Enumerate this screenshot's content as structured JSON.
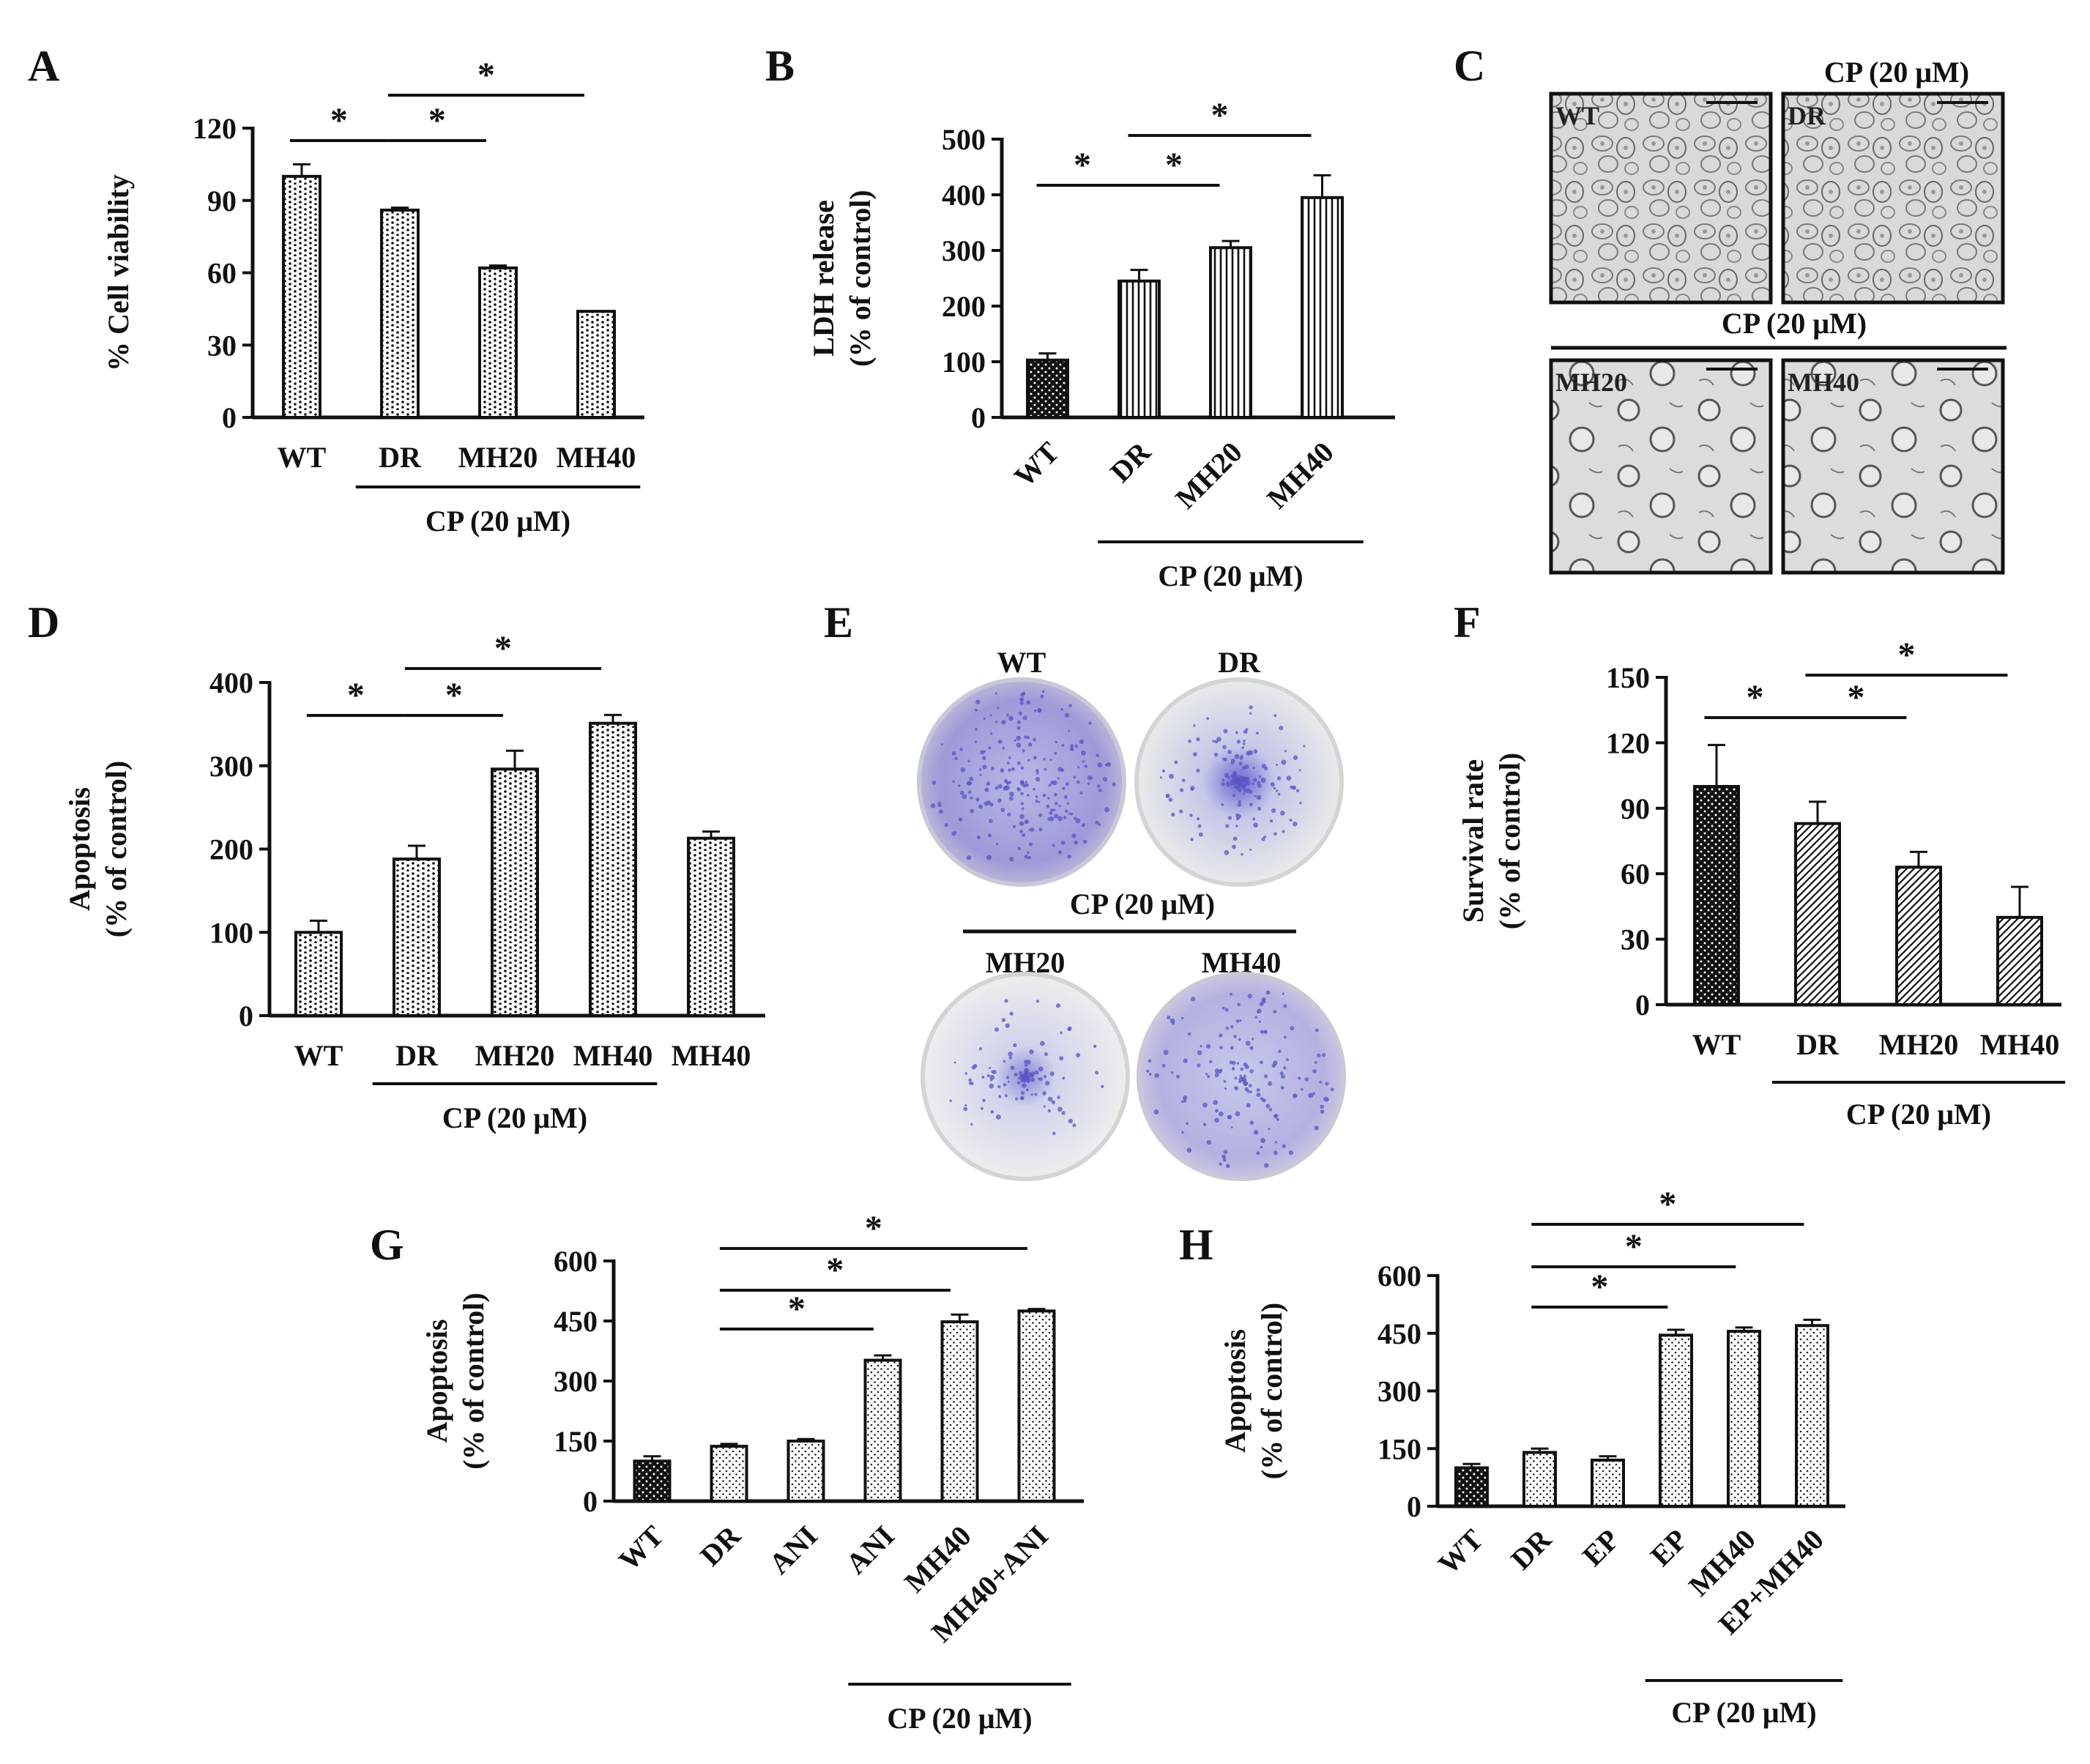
{
  "colors": {
    "ink": "#111111",
    "bar_fill": "#ffffff",
    "stain": "#5a55c4",
    "plate_bg": "#e6e8f2",
    "micro_bg": "#d8d8d8"
  },
  "panels": {
    "A": {
      "letter": "A",
      "chart_data": {
        "type": "bar",
        "pattern": "dots-vertical",
        "categories": [
          "WT",
          "DR",
          "MH20",
          "MH40"
        ],
        "values": [
          100,
          86,
          62,
          44
        ],
        "errors": [
          5,
          1,
          1,
          0
        ],
        "ylabel": [
          "% Cell viability"
        ],
        "ylim": [
          0,
          120
        ],
        "yticks": [
          0,
          30,
          60,
          90,
          120
        ],
        "bracket": {
          "label": "CP (20 μM)",
          "from": 1,
          "to": 3
        },
        "sig": [
          {
            "from": 0,
            "to": 1,
            "level": 0,
            "label": "*"
          },
          {
            "from": 1,
            "to": 2,
            "level": 0,
            "label": "*"
          },
          {
            "from": 1,
            "to": 3,
            "level": 1,
            "label": "*"
          }
        ]
      }
    },
    "B": {
      "letter": "B",
      "chart_data": {
        "type": "bar",
        "pattern": "vertical-lines",
        "categories": [
          "WT",
          "DR",
          "MH20",
          "MH40"
        ],
        "values": [
          103,
          245,
          305,
          395
        ],
        "errors": [
          12,
          20,
          12,
          40
        ],
        "first_dark": true,
        "rotate_labels": true,
        "ylabel": [
          "LDH release",
          "(% of control)"
        ],
        "ylim": [
          0,
          500
        ],
        "yticks": [
          0,
          100,
          200,
          300,
          400,
          500
        ],
        "bracket": {
          "label": "CP (20 μM)",
          "from": 1,
          "to": 3
        },
        "sig": [
          {
            "from": 0,
            "to": 1,
            "level": 0,
            "label": "*"
          },
          {
            "from": 1,
            "to": 2,
            "level": 0,
            "label": "*"
          },
          {
            "from": 1,
            "to": 3,
            "level": 1,
            "label": "*"
          }
        ]
      }
    },
    "C": {
      "letter": "C",
      "top_label": "CP (20 μM)",
      "middle_label": "CP (20 μM)",
      "images": [
        "WT",
        "DR",
        "MH20",
        "MH40"
      ]
    },
    "D": {
      "letter": "D",
      "chart_data": {
        "type": "bar",
        "pattern": "dots-vertical",
        "categories": [
          "WT",
          "DR",
          "MH20",
          "MH40",
          "MH40"
        ],
        "values": [
          100,
          188,
          296,
          351,
          213
        ],
        "errors": [
          14,
          16,
          22,
          10,
          8
        ],
        "ylabel": [
          "Apoptosis",
          "(% of control)"
        ],
        "ylim": [
          0,
          400
        ],
        "yticks": [
          0,
          100,
          200,
          300,
          400
        ],
        "bracket": {
          "label": "CP (20 μM)",
          "from": 1,
          "to": 3
        },
        "sig": [
          {
            "from": 0,
            "to": 1,
            "level": 0,
            "label": "*"
          },
          {
            "from": 1,
            "to": 2,
            "level": 0,
            "label": "*"
          },
          {
            "from": 1,
            "to": 3,
            "level": 1,
            "label": "*"
          }
        ]
      }
    },
    "E": {
      "letter": "E",
      "plates": [
        "WT",
        "DR",
        "MH20",
        "MH40"
      ],
      "middle_label": "CP (20 μM)"
    },
    "F": {
      "letter": "F",
      "chart_data": {
        "type": "bar",
        "pattern": "diagonal",
        "categories": [
          "WT",
          "DR",
          "MH20",
          "MH40"
        ],
        "values": [
          100,
          83,
          63,
          40
        ],
        "errors": [
          19,
          10,
          7,
          14
        ],
        "first_dark": true,
        "ylabel": [
          "Survival rate",
          "(% of control)"
        ],
        "ylim": [
          0,
          150
        ],
        "yticks": [
          0,
          30,
          60,
          90,
          120,
          150
        ],
        "bracket": {
          "label": "CP (20 μM)",
          "from": 1,
          "to": 3
        },
        "sig": [
          {
            "from": 0,
            "to": 1,
            "level": 0,
            "label": "*"
          },
          {
            "from": 1,
            "to": 2,
            "level": 0,
            "label": "*"
          },
          {
            "from": 1,
            "to": 3,
            "level": 1,
            "label": "*"
          }
        ]
      }
    },
    "G": {
      "letter": "G",
      "chart_data": {
        "type": "bar",
        "pattern": "fine-dots",
        "categories": [
          "WT",
          "DR",
          "ANI",
          "ANI",
          "MH40",
          "MH40+ANI"
        ],
        "values": [
          100,
          137,
          150,
          352,
          448,
          475
        ],
        "errors": [
          12,
          6,
          5,
          12,
          18,
          5
        ],
        "first_dark": true,
        "rotate_labels": true,
        "ylabel": [
          "Apoptosis",
          "(% of control)"
        ],
        "ylim": [
          0,
          600
        ],
        "yticks": [
          0,
          150,
          300,
          450,
          600
        ],
        "bracket": {
          "label": "CP (20 μM)",
          "from": 3,
          "to": 5
        },
        "sig": [
          {
            "from": 1,
            "to": 3,
            "level": 0,
            "label": "*"
          },
          {
            "from": 1,
            "to": 4,
            "level": 1,
            "label": "*"
          },
          {
            "from": 1,
            "to": 5,
            "level": 2,
            "label": "*"
          }
        ]
      }
    },
    "H": {
      "letter": "H",
      "chart_data": {
        "type": "bar",
        "pattern": "fine-dots",
        "categories": [
          "WT",
          "DR",
          "EP",
          "EP",
          "MH40",
          "EP+MH40"
        ],
        "values": [
          100,
          140,
          120,
          445,
          455,
          470
        ],
        "errors": [
          10,
          10,
          10,
          14,
          10,
          15
        ],
        "first_dark": true,
        "rotate_labels": true,
        "ylabel": [
          "Apoptosis",
          "(% of control)"
        ],
        "ylim": [
          0,
          600
        ],
        "yticks": [
          0,
          150,
          300,
          450,
          600
        ],
        "bracket": {
          "label": "CP (20 μM)",
          "from": 3,
          "to": 5
        },
        "sig": [
          {
            "from": 1,
            "to": 3,
            "level": 0,
            "label": "*"
          },
          {
            "from": 1,
            "to": 4,
            "level": 1,
            "label": "*"
          },
          {
            "from": 1,
            "to": 5,
            "level": 2,
            "label": "*"
          }
        ]
      }
    }
  }
}
